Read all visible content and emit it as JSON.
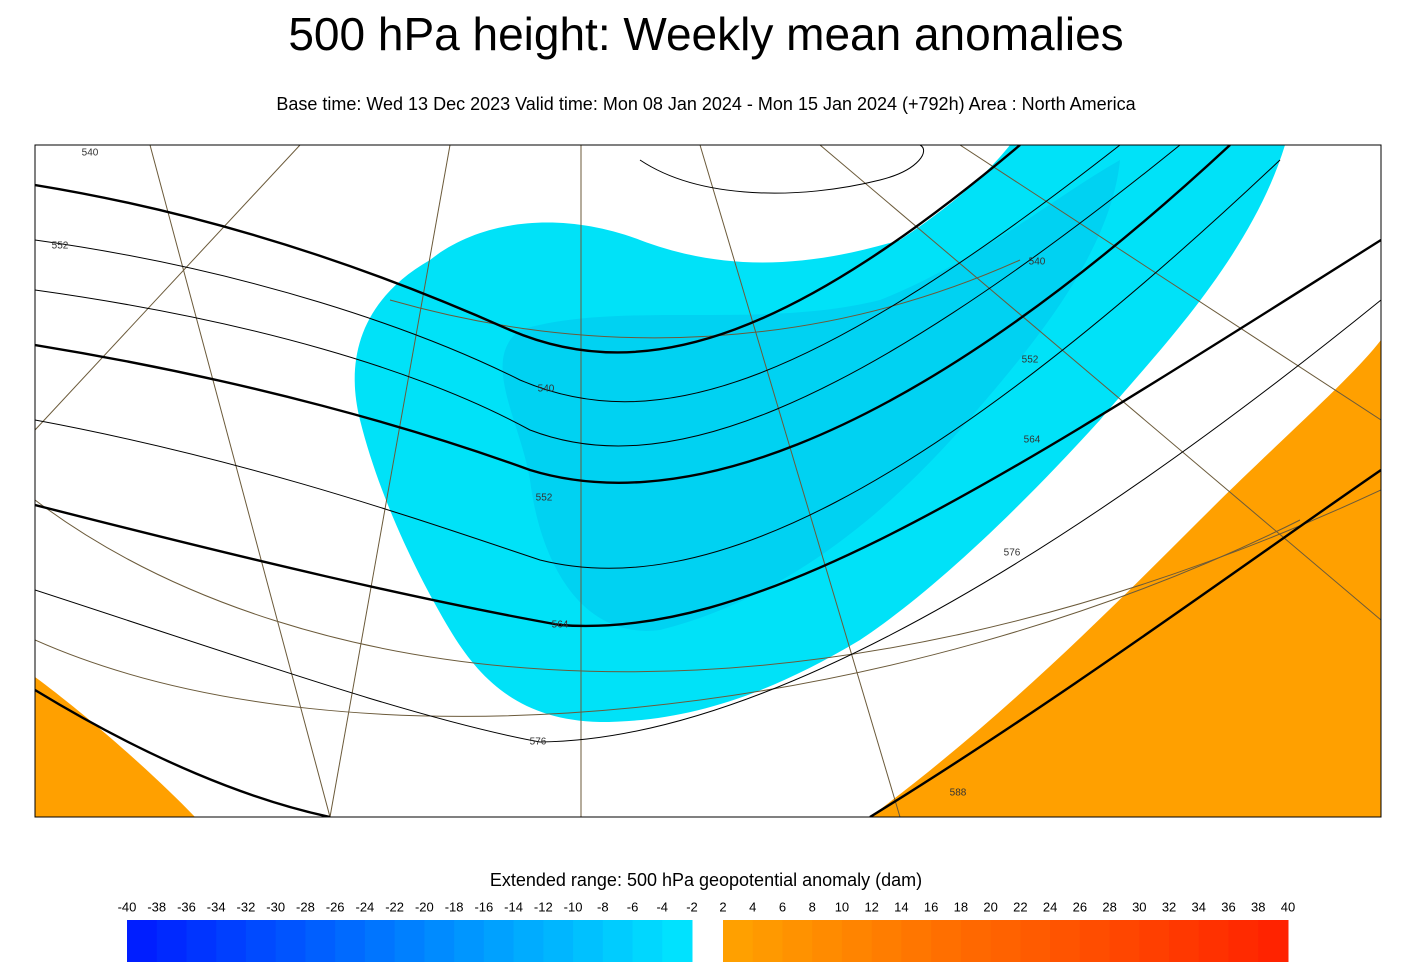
{
  "header": {
    "title": "500 hPa height: Weekly mean anomalies",
    "subtitle": "Base time: Wed 13 Dec 2023 Valid time: Mon 08 Jan 2024 - Mon 15 Jan 2024 (+792h) Area : North America"
  },
  "map": {
    "contour_labels": [
      540,
      552,
      540,
      552,
      564,
      576,
      540,
      552,
      564,
      576,
      588
    ]
  },
  "colorbar": {
    "title": "Extended range: 500 hPa geopotential anomaly (dam)",
    "negative_ticks": [
      -40,
      -38,
      -36,
      -34,
      -32,
      -30,
      -28,
      -26,
      -24,
      -22,
      -20,
      -18,
      -16,
      -14,
      -12,
      -10,
      -8,
      -6,
      -4,
      -2
    ],
    "positive_ticks": [
      2,
      4,
      6,
      8,
      10,
      12,
      14,
      16,
      18,
      20,
      22,
      24,
      26,
      28,
      30,
      32,
      34,
      36,
      38,
      40
    ]
  }
}
